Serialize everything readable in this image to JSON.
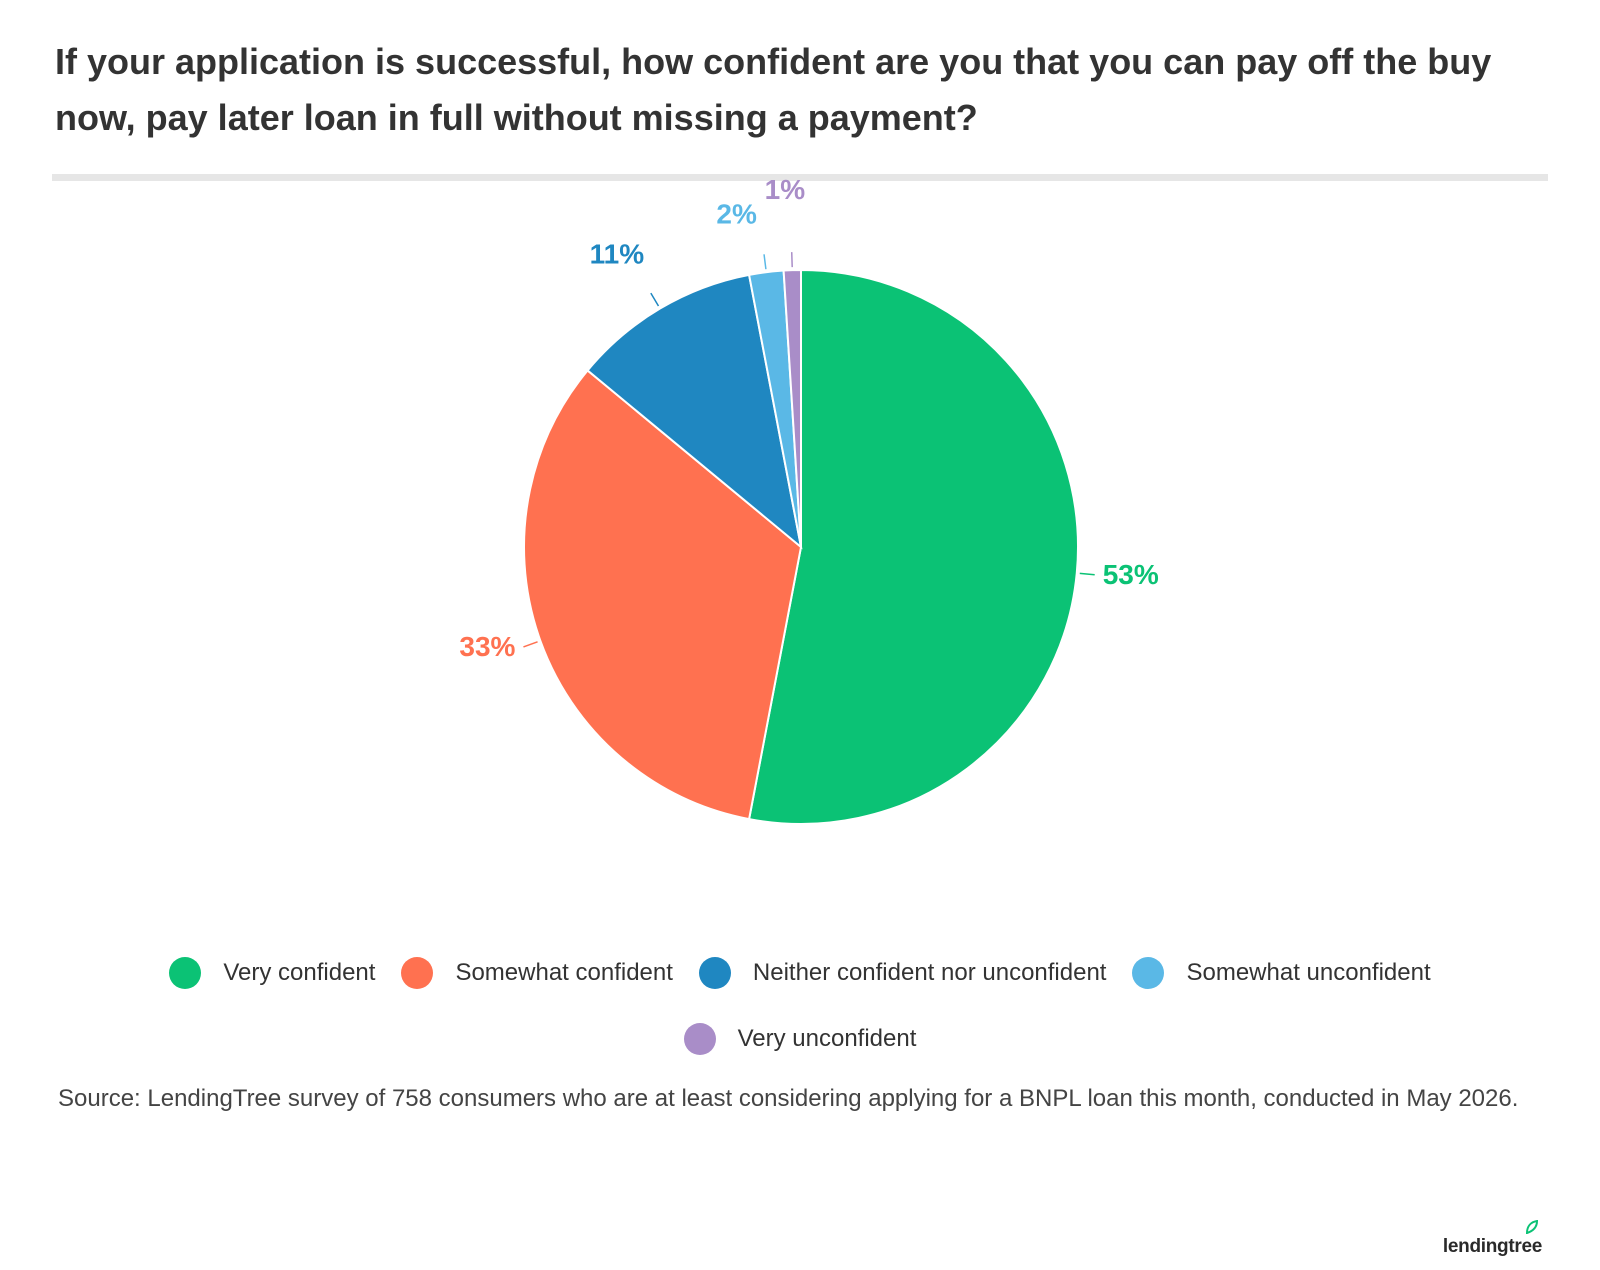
{
  "title": "If your application is successful, how confident are you that you can pay off the buy now, pay later loan in full without missing a payment?",
  "chart_data": {
    "type": "pie",
    "title": "If your application is successful, how confident are you that you can pay off the buy now, pay later loan in full without missing a payment?",
    "slices": [
      {
        "label": "Very confident",
        "value": 53,
        "display": "53%",
        "color": "#0bc275"
      },
      {
        "label": "Somewhat confident",
        "value": 33,
        "display": "33%",
        "color": "#ff7150"
      },
      {
        "label": "Neither confident nor unconfident",
        "value": 11,
        "display": "11%",
        "color": "#1f87c1"
      },
      {
        "label": "Somewhat unconfident",
        "value": 2,
        "display": "2%",
        "color": "#5ab8e6"
      },
      {
        "label": "Very unconfident",
        "value": 1,
        "display": "1%",
        "color": "#a98dc8"
      }
    ],
    "start_angle": "12 o'clock",
    "direction": "clockwise",
    "legend_position": "bottom"
  },
  "source": "Source: LendingTree survey of 758 consumers who are at least considering applying for a BNPL loan this month, conducted in May 2026.",
  "logo_text": "lendingtree"
}
